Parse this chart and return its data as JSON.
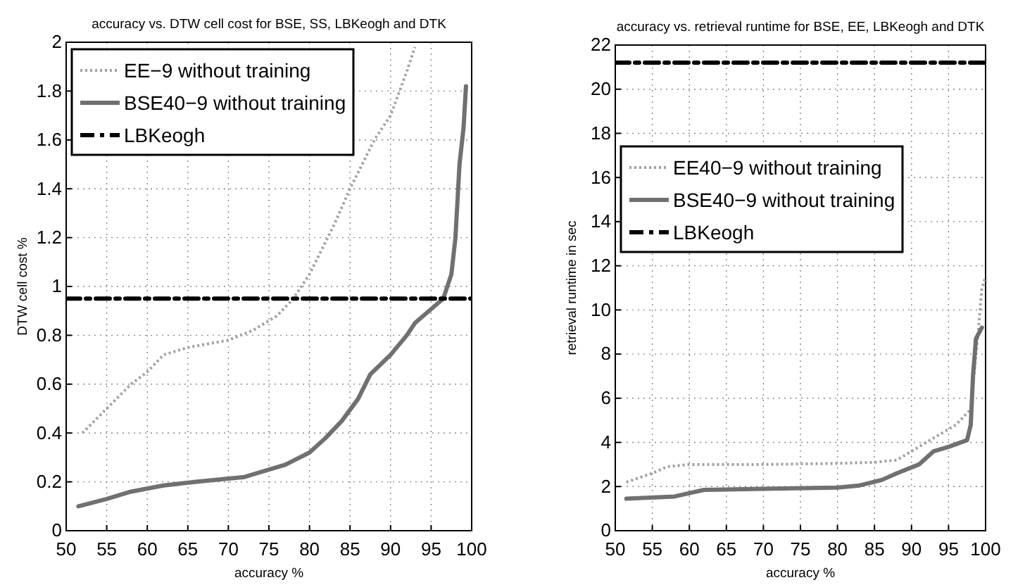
{
  "chart_data": [
    {
      "type": "line",
      "title": "accuracy vs. DTW cell cost for BSE, SS, LBKeogh and DTK",
      "xlabel": "accuracy %",
      "ylabel": "DTW cell cost %",
      "xlim": [
        50,
        100
      ],
      "ylim": [
        0,
        2
      ],
      "xticks": [
        50,
        55,
        60,
        65,
        70,
        75,
        80,
        85,
        90,
        95,
        100
      ],
      "yticks": [
        0,
        0.2,
        0.4,
        0.6,
        0.8,
        1,
        1.2,
        1.4,
        1.6,
        1.8,
        2
      ],
      "grid": true,
      "legend": "top left",
      "series": [
        {
          "name": "EE−9 without training",
          "color": "#a0a0a0",
          "line_style": "dotted",
          "x": [
            52,
            55,
            58,
            60,
            62,
            65,
            70,
            73,
            76,
            78,
            80,
            83,
            85,
            88,
            90,
            92,
            93
          ],
          "values": [
            0.4,
            0.5,
            0.6,
            0.65,
            0.72,
            0.75,
            0.78,
            0.82,
            0.88,
            0.95,
            1.05,
            1.25,
            1.4,
            1.6,
            1.7,
            1.88,
            1.98
          ]
        },
        {
          "name": "BSE40−9 without training",
          "color": "#707070",
          "line_style": "solid",
          "x": [
            51.5,
            55,
            58,
            62,
            66,
            72,
            74,
            77,
            80,
            82,
            84,
            86,
            87.5,
            90,
            92,
            93,
            96.5,
            97.5,
            98,
            98.5,
            99,
            99.3
          ],
          "values": [
            0.1,
            0.13,
            0.16,
            0.185,
            0.2,
            0.22,
            0.24,
            0.27,
            0.32,
            0.38,
            0.45,
            0.54,
            0.64,
            0.72,
            0.8,
            0.85,
            0.95,
            1.05,
            1.2,
            1.5,
            1.65,
            1.82
          ]
        },
        {
          "name": "LBKeogh",
          "color": "#000000",
          "line_style": "dashdot",
          "x": [
            50,
            100
          ],
          "values": [
            0.95,
            0.95
          ]
        }
      ]
    },
    {
      "type": "line",
      "title": "accuracy vs. retrieval runtime for BSE, EE, LBKeogh and DTK",
      "xlabel": "accuracy %",
      "ylabel": "retrieval runtime in sec",
      "xlim": [
        50,
        100
      ],
      "ylim": [
        0,
        22
      ],
      "xticks": [
        50,
        55,
        60,
        65,
        70,
        75,
        80,
        85,
        90,
        95,
        100
      ],
      "yticks": [
        0,
        2,
        4,
        6,
        8,
        10,
        12,
        14,
        16,
        18,
        20,
        22
      ],
      "grid": true,
      "legend": "top left",
      "series": [
        {
          "name": "EE40−9 without training",
          "color": "#a0a0a0",
          "line_style": "dotted",
          "x": [
            51.5,
            55,
            57,
            60,
            70,
            80,
            85,
            88,
            90,
            93,
            96,
            98,
            99,
            99.5,
            100
          ],
          "values": [
            2.2,
            2.6,
            2.9,
            3.0,
            3.0,
            3.05,
            3.1,
            3.2,
            3.6,
            4.2,
            4.8,
            5.5,
            9,
            11,
            11.5
          ]
        },
        {
          "name": "BSE40−9 without training",
          "color": "#707070",
          "line_style": "solid",
          "x": [
            51.5,
            58,
            60,
            62,
            70,
            80,
            83,
            86,
            88,
            91,
            93,
            95,
            97.5,
            98,
            98.3,
            98.7,
            99.5
          ],
          "values": [
            1.45,
            1.55,
            1.7,
            1.85,
            1.9,
            1.95,
            2.05,
            2.3,
            2.6,
            3.0,
            3.6,
            3.8,
            4.1,
            4.8,
            7,
            8.7,
            9.2
          ]
        },
        {
          "name": "LBKeogh",
          "color": "#000000",
          "line_style": "dashdot",
          "x": [
            50,
            100
          ],
          "values": [
            21.2,
            21.2
          ]
        }
      ]
    }
  ]
}
